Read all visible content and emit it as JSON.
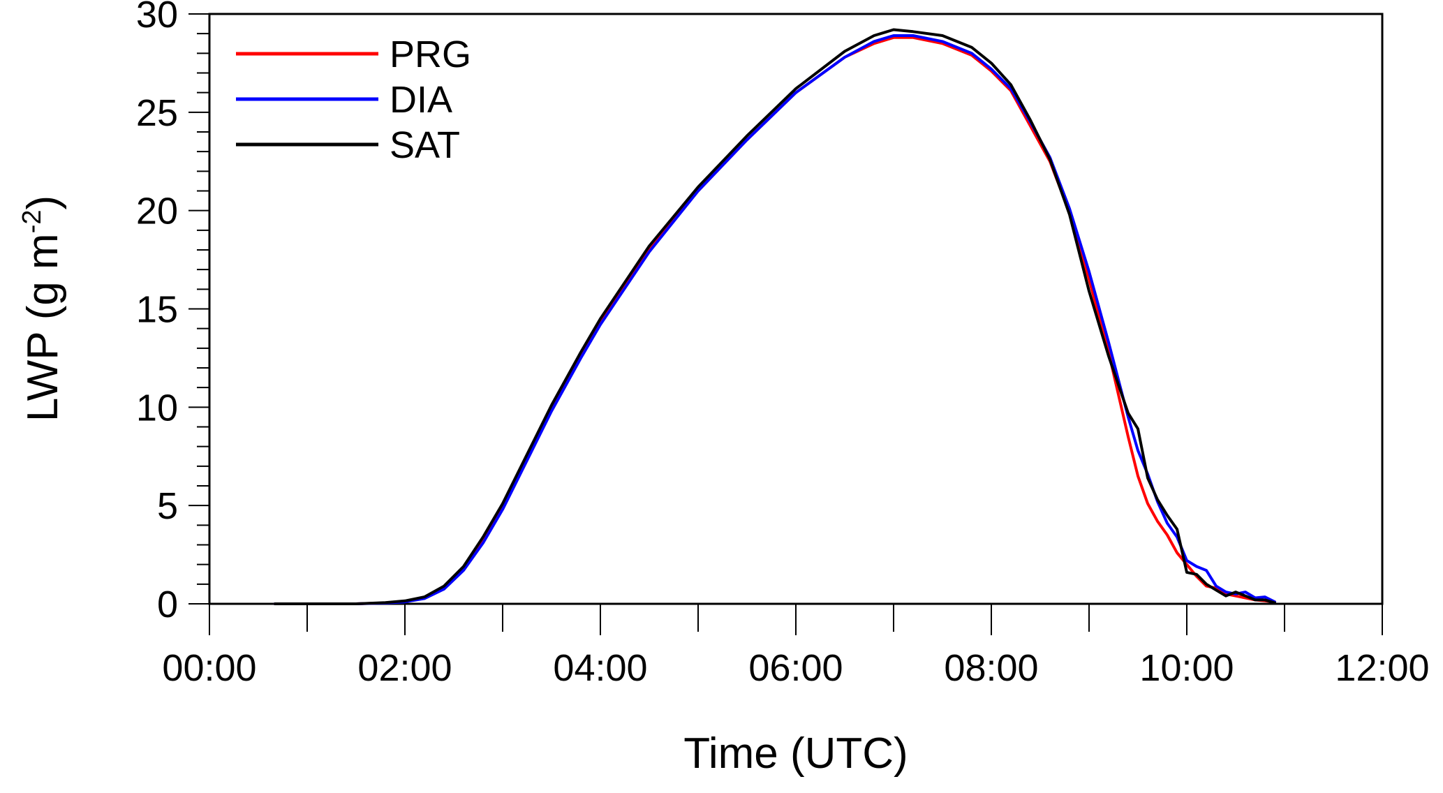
{
  "chart_data": {
    "type": "line",
    "title": "",
    "xlabel": "Time (UTC)",
    "ylabel_main": "LWP (g m",
    "ylabel_sup": "-2",
    "ylabel_close": ")",
    "xlim": [
      0,
      12
    ],
    "ylim": [
      0,
      30
    ],
    "x_ticks": [
      0,
      2,
      4,
      6,
      8,
      10,
      12
    ],
    "x_tick_labels": [
      "00:00",
      "02:00",
      "04:00",
      "06:00",
      "08:00",
      "10:00",
      "12:00"
    ],
    "y_ticks": [
      0,
      5,
      10,
      15,
      20,
      25,
      30
    ],
    "y_tick_labels": [
      "0",
      "5",
      "10",
      "15",
      "20",
      "25",
      "30"
    ],
    "x_minor_step": 1,
    "y_minor_step": 1,
    "grid": false,
    "legend_position": "top-left",
    "series": [
      {
        "name": "PRG",
        "color": "#ff0000",
        "x": [
          0.67,
          1.0,
          1.5,
          1.8,
          2.0,
          2.2,
          2.4,
          2.6,
          2.8,
          3.0,
          3.2,
          3.5,
          3.8,
          4.0,
          4.5,
          5.0,
          5.5,
          6.0,
          6.5,
          6.8,
          7.0,
          7.2,
          7.5,
          7.8,
          8.0,
          8.2,
          8.4,
          8.6,
          8.8,
          9.0,
          9.2,
          9.4,
          9.5,
          9.6,
          9.7,
          9.8,
          9.9,
          10.0,
          10.1,
          10.2,
          10.3,
          10.4,
          10.5,
          10.6,
          10.7,
          10.8,
          10.9
        ],
        "y": [
          0.0,
          0.0,
          0.0,
          0.05,
          0.12,
          0.3,
          0.8,
          1.8,
          3.2,
          4.9,
          6.9,
          9.9,
          12.6,
          14.3,
          18.0,
          21.0,
          23.6,
          26.0,
          27.8,
          28.5,
          28.8,
          28.8,
          28.5,
          27.9,
          27.1,
          26.1,
          24.3,
          22.5,
          19.9,
          16.5,
          12.8,
          8.5,
          6.5,
          5.1,
          4.2,
          3.5,
          2.6,
          2.0,
          1.4,
          0.9,
          0.8,
          0.5,
          0.4,
          0.3,
          0.2,
          0.15,
          0.1
        ]
      },
      {
        "name": "DIA",
        "color": "#0000ff",
        "x": [
          0.67,
          1.0,
          1.5,
          1.8,
          2.0,
          2.2,
          2.4,
          2.6,
          2.8,
          3.0,
          3.2,
          3.5,
          3.8,
          4.0,
          4.5,
          5.0,
          5.5,
          6.0,
          6.5,
          6.8,
          7.0,
          7.2,
          7.5,
          7.8,
          8.0,
          8.2,
          8.4,
          8.6,
          8.8,
          9.0,
          9.2,
          9.4,
          9.5,
          9.6,
          9.7,
          9.8,
          9.9,
          10.0,
          10.1,
          10.2,
          10.3,
          10.4,
          10.5,
          10.6,
          10.7,
          10.8,
          10.9
        ],
        "y": [
          0.0,
          0.0,
          0.0,
          0.04,
          0.1,
          0.27,
          0.75,
          1.7,
          3.1,
          4.8,
          6.8,
          9.8,
          12.5,
          14.2,
          17.9,
          21.0,
          23.6,
          26.0,
          27.8,
          28.6,
          28.9,
          28.9,
          28.6,
          28.0,
          27.2,
          26.2,
          24.5,
          22.7,
          20.1,
          16.9,
          13.3,
          9.5,
          7.8,
          6.6,
          5.2,
          4.1,
          3.4,
          2.2,
          1.9,
          1.7,
          0.9,
          0.6,
          0.5,
          0.6,
          0.3,
          0.35,
          0.1
        ]
      },
      {
        "name": "SAT",
        "color": "#000000",
        "x": [
          0.67,
          1.0,
          1.5,
          1.8,
          2.0,
          2.2,
          2.4,
          2.6,
          2.8,
          3.0,
          3.2,
          3.5,
          3.8,
          4.0,
          4.5,
          5.0,
          5.5,
          6.0,
          6.5,
          6.8,
          7.0,
          7.2,
          7.5,
          7.8,
          8.0,
          8.2,
          8.4,
          8.6,
          8.8,
          9.0,
          9.2,
          9.4,
          9.5,
          9.6,
          9.7,
          9.8,
          9.9,
          10.0,
          10.1,
          10.2,
          10.3,
          10.4,
          10.5,
          10.6,
          10.7,
          10.8,
          10.9
        ],
        "y": [
          0.0,
          0.0,
          0.0,
          0.06,
          0.15,
          0.35,
          0.9,
          1.9,
          3.4,
          5.1,
          7.1,
          10.1,
          12.8,
          14.5,
          18.2,
          21.2,
          23.8,
          26.2,
          28.1,
          28.9,
          29.2,
          29.1,
          28.9,
          28.3,
          27.5,
          26.4,
          24.6,
          22.6,
          19.8,
          15.9,
          12.6,
          9.7,
          8.9,
          6.4,
          5.3,
          4.5,
          3.8,
          1.6,
          1.5,
          1.0,
          0.7,
          0.4,
          0.6,
          0.4,
          0.2,
          0.2,
          0.05
        ]
      }
    ]
  }
}
